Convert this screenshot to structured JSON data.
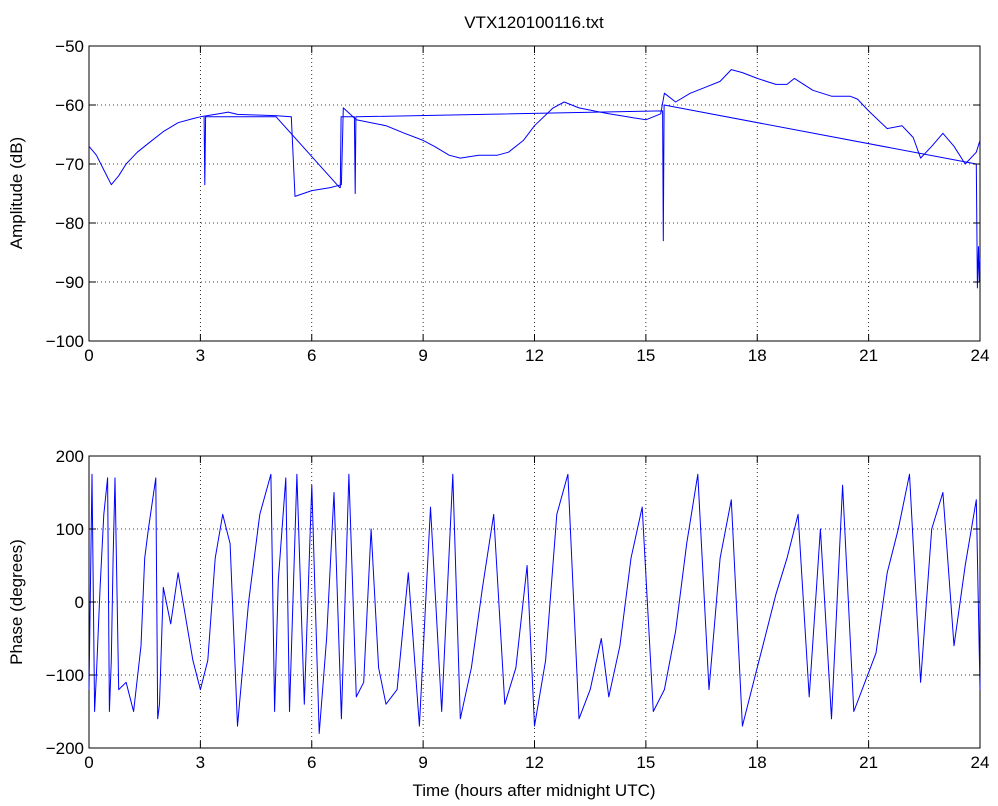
{
  "figure": {
    "title": "VTX120100116.txt"
  },
  "colors": {
    "series": "#0000ff",
    "axes": "#000000",
    "background": "#ffffff"
  },
  "chart_data": [
    {
      "type": "line",
      "title": "VTX120100116.txt",
      "xlabel": "",
      "ylabel": "Amplitude (dB)",
      "xlim": [
        0,
        24
      ],
      "ylim": [
        -100,
        -50
      ],
      "xticks": [
        0,
        3,
        6,
        9,
        12,
        15,
        18,
        21,
        24
      ],
      "yticks": [
        -100,
        -90,
        -80,
        -70,
        -60,
        -50
      ],
      "grid": true,
      "series": [
        {
          "x": [
            0,
            0.2,
            0.4,
            0.6,
            0.8,
            1.0,
            1.3,
            1.6,
            2.0,
            2.4,
            2.8,
            3.0,
            3.5,
            3.75,
            4.0,
            4.5,
            5.0,
            5.45,
            5.55,
            6.0,
            6.5,
            6.8,
            6.85,
            7.2,
            7.6,
            8.0,
            8.5,
            9.0,
            9.3,
            9.7,
            10.0,
            10.5,
            11.0,
            11.3,
            11.7,
            12.0,
            12.5,
            12.8,
            13.2,
            13.6,
            14.0,
            14.5,
            15.0,
            15.4,
            15.5,
            15.8,
            16.2,
            16.6,
            17.0,
            17.3,
            17.6,
            18.0,
            18.5,
            18.8,
            19.0,
            19.5,
            20.0,
            20.5,
            20.7,
            21.0,
            21.5,
            21.9,
            22.2,
            22.4,
            22.7,
            23.0,
            23.3,
            23.6,
            23.9,
            24.0
          ],
          "y": [
            -67,
            -68.5,
            -71,
            -73.5,
            -72,
            -70,
            -68,
            -66.5,
            -64.5,
            -63,
            -62.3,
            -62,
            -61.5,
            -61.2,
            -61.6,
            -61.7,
            -61.8,
            -62,
            -75.5,
            -74.5,
            -74,
            -73.5,
            -60.5,
            -62.5,
            -63,
            -63.5,
            -64.8,
            -66,
            -67,
            -68.5,
            -69,
            -68.5,
            -68.5,
            -68,
            -66,
            -63.5,
            -60.5,
            -59.5,
            -60.5,
            -61,
            -61.5,
            -62,
            -62.5,
            -61.5,
            -58,
            -59.5,
            -58,
            -57,
            -56,
            -54,
            -54.5,
            -55.5,
            -56.5,
            -56.5,
            -55.5,
            -57.5,
            -58.5,
            -58.5,
            -59,
            -61,
            -64,
            -63.5,
            -65.5,
            -69,
            -67,
            -64.8,
            -67,
            -70,
            -68,
            -66
          ]
        },
        {
          "x": [
            3.1,
            3.12,
            3.14,
            5.0,
            5.02,
            5.04,
            6.75,
            6.77,
            6.79,
            7.15,
            7.17,
            7.19,
            15.45,
            15.47,
            15.49,
            23.9,
            23.93,
            23.96,
            23.98,
            24.0
          ],
          "y": [
            -62,
            -73.5,
            -62,
            -62,
            -62,
            -62,
            -74,
            -74,
            -62,
            -62,
            -75,
            -62,
            -61,
            -83,
            -60,
            -70,
            -91,
            -84,
            -90,
            -86
          ]
        }
      ]
    },
    {
      "type": "line",
      "title": "",
      "xlabel": "Time (hours after midnight UTC)",
      "ylabel": "Phase (degrees)",
      "xlim": [
        0,
        24
      ],
      "ylim": [
        -200,
        200
      ],
      "xticks": [
        0,
        3,
        6,
        9,
        12,
        15,
        18,
        21,
        24
      ],
      "yticks": [
        -200,
        -100,
        0,
        100,
        200
      ],
      "grid": true,
      "series": [
        {
          "x": [
            0,
            0.08,
            0.15,
            0.2,
            0.3,
            0.4,
            0.5,
            0.55,
            0.6,
            0.65,
            0.7,
            0.8,
            1.0,
            1.2,
            1.4,
            1.5,
            1.6,
            1.8,
            1.85,
            1.9,
            2.0,
            2.2,
            2.4,
            2.6,
            2.8,
            3.0,
            3.2,
            3.4,
            3.6,
            3.8,
            4.0,
            4.3,
            4.6,
            4.9,
            5.0,
            5.1,
            5.3,
            5.4,
            5.6,
            5.8,
            6.0,
            6.2,
            6.4,
            6.6,
            6.8,
            7.0,
            7.2,
            7.4,
            7.6,
            7.8,
            8.0,
            8.3,
            8.6,
            8.9,
            9.2,
            9.5,
            9.8,
            10.0,
            10.3,
            10.6,
            10.9,
            11.2,
            11.5,
            11.8,
            12.0,
            12.3,
            12.6,
            12.9,
            13.2,
            13.5,
            13.8,
            14.0,
            14.3,
            14.6,
            14.9,
            15.2,
            15.5,
            15.8,
            16.1,
            16.4,
            16.7,
            17.0,
            17.3,
            17.6,
            17.9,
            18.2,
            18.5,
            18.8,
            19.1,
            19.4,
            19.7,
            20.0,
            20.3,
            20.6,
            20.9,
            21.2,
            21.5,
            21.8,
            22.1,
            22.4,
            22.7,
            23.0,
            23.3,
            23.6,
            23.9,
            24.0
          ],
          "y": [
            -120,
            175,
            -150,
            -100,
            20,
            120,
            170,
            -150,
            -80,
            60,
            170,
            -120,
            -110,
            -150,
            -60,
            60,
            100,
            170,
            -160,
            -140,
            20,
            -30,
            40,
            -20,
            -80,
            -120,
            -80,
            60,
            120,
            80,
            -170,
            0,
            120,
            175,
            -150,
            30,
            170,
            -150,
            175,
            -140,
            160,
            -180,
            -50,
            150,
            -160,
            175,
            -130,
            -110,
            100,
            -90,
            -140,
            -120,
            40,
            -170,
            130,
            -150,
            175,
            -160,
            -90,
            20,
            120,
            -140,
            -90,
            50,
            -170,
            -80,
            120,
            175,
            -160,
            -120,
            -50,
            -130,
            -60,
            60,
            130,
            -150,
            -120,
            -40,
            80,
            175,
            -120,
            60,
            140,
            -170,
            -110,
            -50,
            10,
            60,
            120,
            -130,
            100,
            -160,
            160,
            -150,
            -110,
            -70,
            40,
            100,
            175,
            -110,
            100,
            150,
            -60,
            50,
            140,
            -120
          ]
        }
      ]
    }
  ]
}
